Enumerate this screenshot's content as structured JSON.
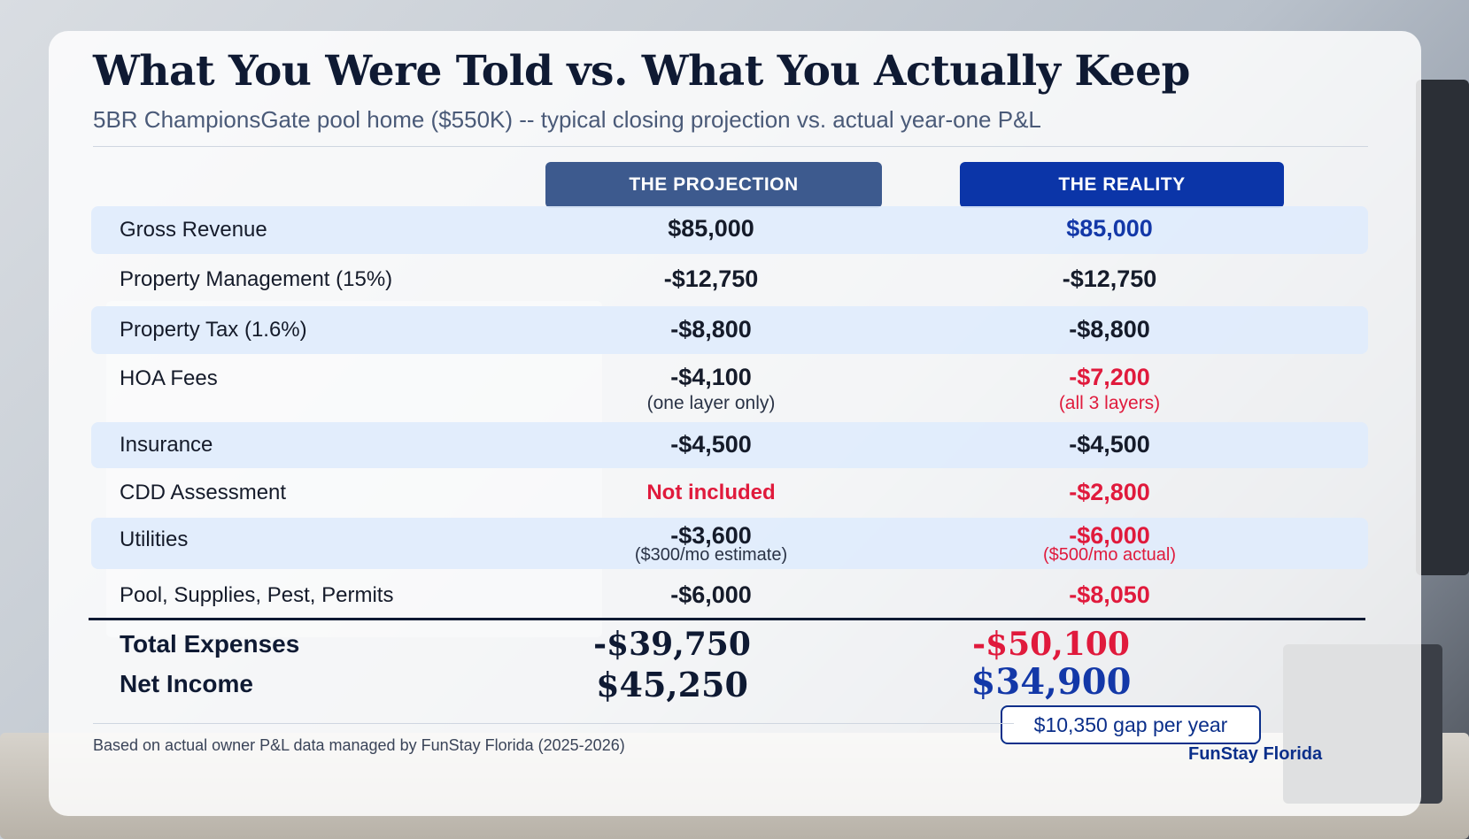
{
  "title": "What You Were Told vs. What You Actually Keep",
  "subtitle": "5BR ChampionsGate pool home ($550K) -- typical closing projection vs. actual year-one P&L",
  "columns": {
    "projection": "THE PROJECTION",
    "reality": "THE REALITY"
  },
  "rows": [
    {
      "label": "Gross Revenue",
      "projection": "$85,000",
      "projection_note": "",
      "reality": "$85,000",
      "reality_note": ""
    },
    {
      "label": "Property Management (15%)",
      "projection": "-$12,750",
      "projection_note": "",
      "reality": "-$12,750",
      "reality_note": ""
    },
    {
      "label": "Property Tax (1.6%)",
      "projection": "-$8,800",
      "projection_note": "",
      "reality": "-$8,800",
      "reality_note": ""
    },
    {
      "label": "HOA Fees",
      "projection": "-$4,100",
      "projection_note": "(one layer only)",
      "reality": "-$7,200",
      "reality_note": "(all 3 layers)"
    },
    {
      "label": "Insurance",
      "projection": "-$4,500",
      "projection_note": "",
      "reality": "-$4,500",
      "reality_note": ""
    },
    {
      "label": "CDD Assessment",
      "projection": "Not included",
      "projection_note": "",
      "reality": "-$2,800",
      "reality_note": ""
    },
    {
      "label": "Utilities",
      "projection": "-$3,600",
      "projection_note": "($300/mo estimate)",
      "reality": "-$6,000",
      "reality_note": "($500/mo actual)"
    },
    {
      "label": "Pool, Supplies, Pest, Permits",
      "projection": "-$6,000",
      "projection_note": "",
      "reality": "-$8,050",
      "reality_note": ""
    }
  ],
  "totals": {
    "expenses_label": "Total Expenses",
    "expenses_projection": "-$39,750",
    "expenses_reality": "-$50,100",
    "net_label": "Net Income",
    "net_projection": "$45,250",
    "net_reality": "$34,900"
  },
  "gap": "$10,350 gap per year",
  "footnote": "Based on actual owner P&L data managed by FunStay Florida (2025-2026)",
  "brand": "FunStay Florida",
  "colors": {
    "navy": "#0f1a33",
    "projection_header": "#3d5a8e",
    "reality_header": "#0b35a8",
    "highlight_red": "#e01a3c",
    "highlight_blue": "#1338a8"
  }
}
